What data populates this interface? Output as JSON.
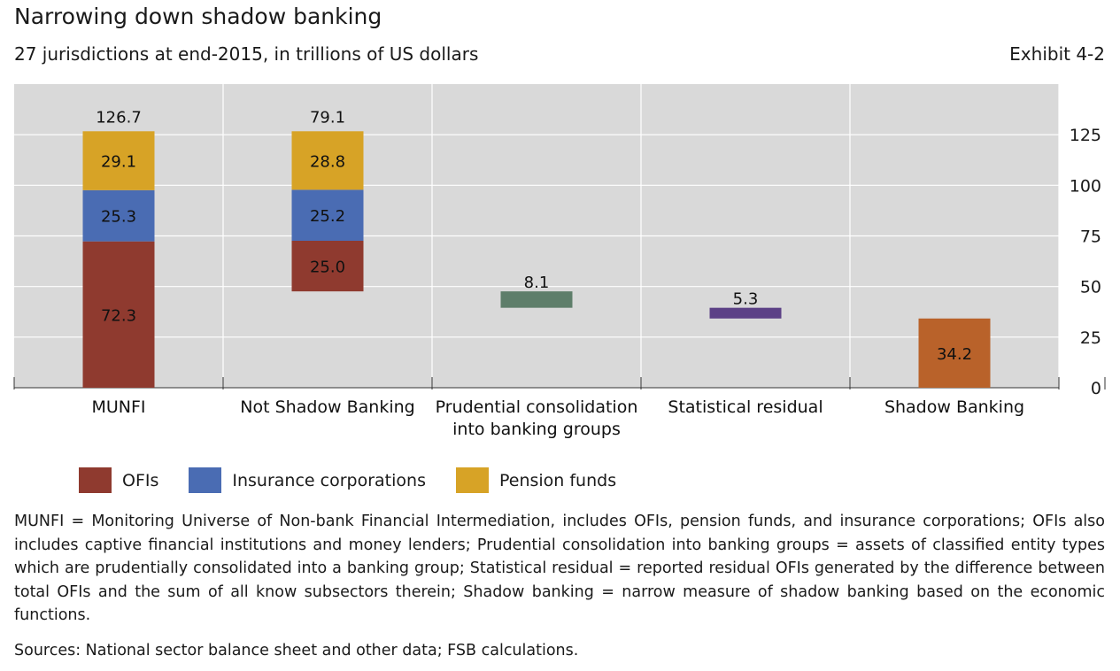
{
  "title": "Narrowing down shadow banking",
  "subtitle": "27 jurisdictions at end-2015, in trillions of US dollars",
  "exhibit": "Exhibit 4-2",
  "colors": {
    "ofis": "#8f3a2f",
    "insurance": "#4a6cb3",
    "pension": "#d7a326",
    "prudential": "#5e7e6a",
    "residual": "#5c4186",
    "shadow": "#b9622a",
    "plot_bg": "#d9d9d9"
  },
  "legend": [
    {
      "label": "OFIs",
      "color": "#8f3a2f"
    },
    {
      "label": "Insurance corporations",
      "color": "#4a6cb3"
    },
    {
      "label": "Pension funds",
      "color": "#d7a326"
    }
  ],
  "chart_data": {
    "type": "bar",
    "subtype": "waterfall",
    "title": "Narrowing down shadow banking",
    "subtitle": "27 jurisdictions at end-2015, in trillions of US dollars",
    "xlabel": "",
    "ylabel": "",
    "ylim": [
      0,
      150
    ],
    "yticks": [
      0,
      25,
      50,
      75,
      100,
      125
    ],
    "ytick_labels": [
      "0",
      "25",
      "50",
      "75",
      "100",
      "125"
    ],
    "y_axis_position": "right",
    "grid": true,
    "legend_position": "bottom-left",
    "categories": [
      "MUNFI",
      "Not Shadow Banking",
      "Prudential consolidation into banking groups",
      "Statistical residual",
      "Shadow Banking"
    ],
    "category_label_lines": [
      [
        "MUNFI"
      ],
      [
        "Not Shadow Banking"
      ],
      [
        "Prudential consolidation",
        "into banking groups"
      ],
      [
        "Statistical residual"
      ],
      [
        "Shadow Banking"
      ]
    ],
    "bars": [
      {
        "category": "MUNFI",
        "total_label": "126.7",
        "segments": [
          {
            "series": "OFIs",
            "value": 72.3,
            "label": "72.3",
            "color": "#8f3a2f"
          },
          {
            "series": "Insurance corporations",
            "value": 25.3,
            "label": "25.3",
            "color": "#4a6cb3"
          },
          {
            "series": "Pension funds",
            "value": 29.1,
            "label": "29.1",
            "color": "#d7a326"
          }
        ]
      },
      {
        "category": "Not Shadow Banking",
        "total_label": "79.1",
        "segments": [
          {
            "series": "OFIs",
            "from": 47.6,
            "to": 72.6,
            "value": 25.0,
            "label": "25.0",
            "color": "#8f3a2f"
          },
          {
            "series": "Insurance corporations",
            "from": 72.6,
            "to": 97.8,
            "value": 25.2,
            "label": "25.2",
            "color": "#4a6cb3"
          },
          {
            "series": "Pension funds",
            "from": 97.8,
            "to": 126.7,
            "value": 28.8,
            "label": "28.8",
            "color": "#d7a326"
          }
        ]
      },
      {
        "category": "Prudential consolidation into banking groups",
        "segments": [
          {
            "from": 39.5,
            "to": 47.6,
            "value": 8.1,
            "label": "8.1",
            "label_pos": "above",
            "color": "#5e7e6a"
          }
        ]
      },
      {
        "category": "Statistical residual",
        "segments": [
          {
            "from": 34.2,
            "to": 39.5,
            "value": 5.3,
            "label": "5.3",
            "label_pos": "above",
            "color": "#5c4186"
          }
        ]
      },
      {
        "category": "Shadow Banking",
        "segments": [
          {
            "from": 0,
            "to": 34.2,
            "value": 34.2,
            "label": "34.2",
            "color": "#b9622a"
          }
        ]
      }
    ]
  },
  "footnote": "MUNFI = Monitoring Universe of Non-bank Financial Intermediation, includes OFIs, pension funds, and insurance corporations; OFIs also includes captive financial institutions and money lenders; Prudential consolidation into banking groups = assets of classified entity types which are prudentially consolidated into a banking group; Statistical residual = reported residual OFIs generated by the difference between total OFIs and the sum of all know subsectors therein; Shadow banking = narrow measure of shadow banking based on the economic functions.",
  "sources": "Sources: National sector balance sheet and other data; FSB calculations."
}
